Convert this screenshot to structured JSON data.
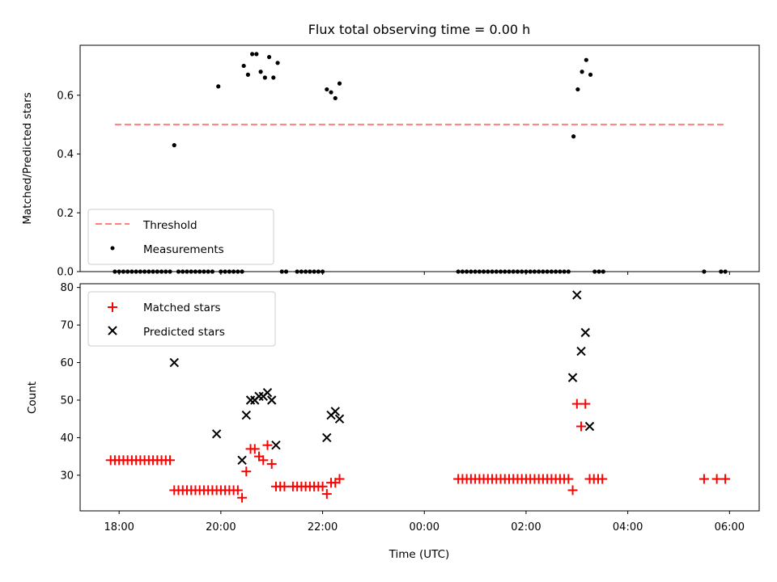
{
  "chart_data": [
    {
      "type": "scatter",
      "title": "Flux total observing time = 0.00 h",
      "ylabel": "Matched/Predicted stars",
      "xlabel": "",
      "ylim": [
        0,
        0.77
      ],
      "yticks": [
        0.0,
        0.2,
        0.4,
        0.6
      ],
      "threshold": {
        "name": "Threshold",
        "y": 0.5,
        "x_start": "17:55",
        "x_end": "05:55",
        "color": "#ff7f7f"
      },
      "legend": [
        "Threshold",
        "Measurements"
      ],
      "legend_position": "lower-left",
      "series": [
        {
          "name": "Measurements",
          "color": "#000000",
          "points": [
            [
              "17:55",
              0
            ],
            [
              "18:00",
              0
            ],
            [
              "18:05",
              0
            ],
            [
              "18:10",
              0
            ],
            [
              "18:15",
              0
            ],
            [
              "18:20",
              0
            ],
            [
              "18:25",
              0
            ],
            [
              "18:30",
              0
            ],
            [
              "18:35",
              0
            ],
            [
              "18:40",
              0
            ],
            [
              "18:45",
              0
            ],
            [
              "18:50",
              0
            ],
            [
              "18:55",
              0
            ],
            [
              "19:00",
              0
            ],
            [
              "19:05",
              0.43
            ],
            [
              "19:10",
              0
            ],
            [
              "19:15",
              0
            ],
            [
              "19:20",
              0
            ],
            [
              "19:25",
              0
            ],
            [
              "19:30",
              0
            ],
            [
              "19:35",
              0
            ],
            [
              "19:40",
              0
            ],
            [
              "19:45",
              0
            ],
            [
              "19:50",
              0
            ],
            [
              "19:57",
              0.63
            ],
            [
              "20:00",
              0
            ],
            [
              "20:05",
              0
            ],
            [
              "20:10",
              0
            ],
            [
              "20:15",
              0
            ],
            [
              "20:20",
              0
            ],
            [
              "20:25",
              0
            ],
            [
              "20:27",
              0.7
            ],
            [
              "20:32",
              0.67
            ],
            [
              "20:37",
              0.74
            ],
            [
              "20:42",
              0.74
            ],
            [
              "20:47",
              0.68
            ],
            [
              "20:52",
              0.66
            ],
            [
              "20:57",
              0.73
            ],
            [
              "21:02",
              0.66
            ],
            [
              "21:07",
              0.71
            ],
            [
              "21:12",
              0
            ],
            [
              "21:17",
              0
            ],
            [
              "21:30",
              0
            ],
            [
              "21:35",
              0
            ],
            [
              "21:40",
              0
            ],
            [
              "21:45",
              0
            ],
            [
              "21:50",
              0
            ],
            [
              "21:55",
              0
            ],
            [
              "22:00",
              0
            ],
            [
              "22:05",
              0.62
            ],
            [
              "22:10",
              0.61
            ],
            [
              "22:15",
              0.59
            ],
            [
              "22:20",
              0.64
            ],
            [
              "00:40",
              0
            ],
            [
              "00:45",
              0
            ],
            [
              "00:50",
              0
            ],
            [
              "00:55",
              0
            ],
            [
              "01:00",
              0
            ],
            [
              "01:05",
              0
            ],
            [
              "01:10",
              0
            ],
            [
              "01:15",
              0
            ],
            [
              "01:20",
              0
            ],
            [
              "01:25",
              0
            ],
            [
              "01:30",
              0
            ],
            [
              "01:35",
              0
            ],
            [
              "01:40",
              0
            ],
            [
              "01:45",
              0
            ],
            [
              "01:50",
              0
            ],
            [
              "01:55",
              0
            ],
            [
              "02:00",
              0
            ],
            [
              "02:05",
              0
            ],
            [
              "02:10",
              0
            ],
            [
              "02:15",
              0
            ],
            [
              "02:20",
              0
            ],
            [
              "02:25",
              0
            ],
            [
              "02:30",
              0
            ],
            [
              "02:35",
              0
            ],
            [
              "02:40",
              0
            ],
            [
              "02:45",
              0
            ],
            [
              "02:50",
              0
            ],
            [
              "02:56",
              0.46
            ],
            [
              "03:01",
              0.62
            ],
            [
              "03:06",
              0.68
            ],
            [
              "03:11",
              0.72
            ],
            [
              "03:16",
              0.67
            ],
            [
              "03:21",
              0
            ],
            [
              "03:26",
              0
            ],
            [
              "03:31",
              0
            ],
            [
              "05:30",
              0
            ],
            [
              "05:50",
              0
            ],
            [
              "05:55",
              0
            ]
          ]
        }
      ]
    },
    {
      "type": "scatter",
      "title": "",
      "xlabel": "Time (UTC)",
      "ylabel": "Count",
      "ylim": [
        20.5,
        81
      ],
      "yticks": [
        30,
        40,
        50,
        60,
        70,
        80
      ],
      "xlim": [
        "17:14",
        "06:35"
      ],
      "xticks": [
        "18:00",
        "20:00",
        "22:00",
        "00:00",
        "02:00",
        "04:00",
        "06:00"
      ],
      "legend": [
        "Matched stars",
        "Predicted stars"
      ],
      "legend_position": "upper-left",
      "series": [
        {
          "name": "Matched stars",
          "marker": "+",
          "color": "#ff0000",
          "points": [
            [
              "17:50",
              34
            ],
            [
              "17:55",
              34
            ],
            [
              "18:00",
              34
            ],
            [
              "18:05",
              34
            ],
            [
              "18:10",
              34
            ],
            [
              "18:15",
              34
            ],
            [
              "18:20",
              34
            ],
            [
              "18:25",
              34
            ],
            [
              "18:30",
              34
            ],
            [
              "18:35",
              34
            ],
            [
              "18:40",
              34
            ],
            [
              "18:45",
              34
            ],
            [
              "18:50",
              34
            ],
            [
              "18:55",
              34
            ],
            [
              "19:00",
              34
            ],
            [
              "19:05",
              26
            ],
            [
              "19:10",
              26
            ],
            [
              "19:15",
              26
            ],
            [
              "19:20",
              26
            ],
            [
              "19:25",
              26
            ],
            [
              "19:30",
              26
            ],
            [
              "19:35",
              26
            ],
            [
              "19:40",
              26
            ],
            [
              "19:45",
              26
            ],
            [
              "19:50",
              26
            ],
            [
              "19:55",
              26
            ],
            [
              "20:00",
              26
            ],
            [
              "20:05",
              26
            ],
            [
              "20:10",
              26
            ],
            [
              "20:15",
              26
            ],
            [
              "20:20",
              26
            ],
            [
              "20:25",
              24
            ],
            [
              "20:30",
              31
            ],
            [
              "20:35",
              37
            ],
            [
              "20:40",
              37
            ],
            [
              "20:45",
              35
            ],
            [
              "20:50",
              34
            ],
            [
              "20:55",
              38
            ],
            [
              "21:00",
              33
            ],
            [
              "21:05",
              27
            ],
            [
              "21:10",
              27
            ],
            [
              "21:15",
              27
            ],
            [
              "21:25",
              27
            ],
            [
              "21:30",
              27
            ],
            [
              "21:35",
              27
            ],
            [
              "21:40",
              27
            ],
            [
              "21:45",
              27
            ],
            [
              "21:50",
              27
            ],
            [
              "21:55",
              27
            ],
            [
              "22:00",
              27
            ],
            [
              "22:05",
              25
            ],
            [
              "22:10",
              28
            ],
            [
              "22:15",
              28
            ],
            [
              "22:20",
              29
            ],
            [
              "00:40",
              29
            ],
            [
              "00:45",
              29
            ],
            [
              "00:50",
              29
            ],
            [
              "00:55",
              29
            ],
            [
              "01:00",
              29
            ],
            [
              "01:05",
              29
            ],
            [
              "01:10",
              29
            ],
            [
              "01:15",
              29
            ],
            [
              "01:20",
              29
            ],
            [
              "01:25",
              29
            ],
            [
              "01:30",
              29
            ],
            [
              "01:35",
              29
            ],
            [
              "01:40",
              29
            ],
            [
              "01:45",
              29
            ],
            [
              "01:50",
              29
            ],
            [
              "01:55",
              29
            ],
            [
              "02:00",
              29
            ],
            [
              "02:05",
              29
            ],
            [
              "02:10",
              29
            ],
            [
              "02:15",
              29
            ],
            [
              "02:20",
              29
            ],
            [
              "02:25",
              29
            ],
            [
              "02:30",
              29
            ],
            [
              "02:35",
              29
            ],
            [
              "02:40",
              29
            ],
            [
              "02:45",
              29
            ],
            [
              "02:50",
              29
            ],
            [
              "02:55",
              26
            ],
            [
              "03:00",
              49
            ],
            [
              "03:05",
              43
            ],
            [
              "03:10",
              49
            ],
            [
              "03:15",
              29
            ],
            [
              "03:20",
              29
            ],
            [
              "03:25",
              29
            ],
            [
              "03:30",
              29
            ],
            [
              "05:30",
              29
            ],
            [
              "05:45",
              29
            ],
            [
              "05:55",
              29
            ]
          ]
        },
        {
          "name": "Predicted stars",
          "marker": "x",
          "color": "#000000",
          "points": [
            [
              "19:05",
              60
            ],
            [
              "19:55",
              41
            ],
            [
              "20:25",
              34
            ],
            [
              "20:30",
              46
            ],
            [
              "20:35",
              50
            ],
            [
              "20:40",
              50
            ],
            [
              "20:45",
              51
            ],
            [
              "20:50",
              51
            ],
            [
              "20:55",
              52
            ],
            [
              "21:00",
              50
            ],
            [
              "21:05",
              38
            ],
            [
              "22:05",
              40
            ],
            [
              "22:10",
              46
            ],
            [
              "22:15",
              47
            ],
            [
              "22:20",
              45
            ],
            [
              "02:55",
              56
            ],
            [
              "03:00",
              78
            ],
            [
              "03:05",
              63
            ],
            [
              "03:10",
              68
            ],
            [
              "03:15",
              43
            ]
          ]
        }
      ]
    }
  ]
}
